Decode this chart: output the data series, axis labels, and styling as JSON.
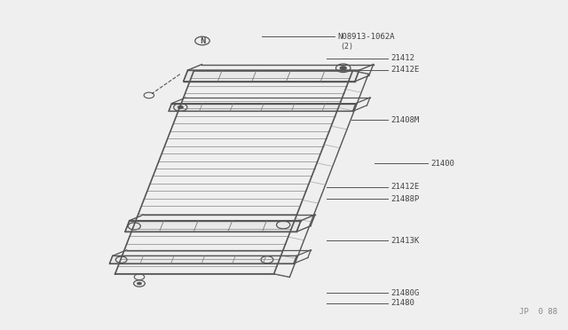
{
  "bg_color": "#efefef",
  "watermark": "JP  0 88",
  "lc": "#555555",
  "tc": "#444444",
  "dc": "#777777",
  "parts": [
    {
      "label": "N08913-1062A",
      "label2": "(2)",
      "xl": 0.595,
      "yl": 0.895,
      "xe": 0.46,
      "ye": 0.895
    },
    {
      "label": "21412",
      "label2": "",
      "xl": 0.69,
      "yl": 0.828,
      "xe": 0.575,
      "ye": 0.828
    },
    {
      "label": "21412E",
      "label2": "",
      "xl": 0.69,
      "yl": 0.793,
      "xe": 0.575,
      "ye": 0.793
    },
    {
      "label": "21408M",
      "label2": "",
      "xl": 0.69,
      "yl": 0.638,
      "xe": 0.62,
      "ye": 0.638
    },
    {
      "label": "21400",
      "label2": "",
      "xl": 0.76,
      "yl": 0.505,
      "xe": 0.66,
      "ye": 0.505
    },
    {
      "label": "21412E",
      "label2": "",
      "xl": 0.69,
      "yl": 0.433,
      "xe": 0.575,
      "ye": 0.433
    },
    {
      "label": "21488P",
      "label2": "",
      "xl": 0.69,
      "yl": 0.396,
      "xe": 0.575,
      "ye": 0.396
    },
    {
      "label": "21413K",
      "label2": "",
      "xl": 0.69,
      "yl": 0.268,
      "xe": 0.575,
      "ye": 0.268
    },
    {
      "label": "21480G",
      "label2": "",
      "xl": 0.69,
      "yl": 0.107,
      "xe": 0.575,
      "ye": 0.107
    },
    {
      "label": "21480",
      "label2": "",
      "xl": 0.69,
      "yl": 0.075,
      "xe": 0.575,
      "ye": 0.075
    }
  ]
}
